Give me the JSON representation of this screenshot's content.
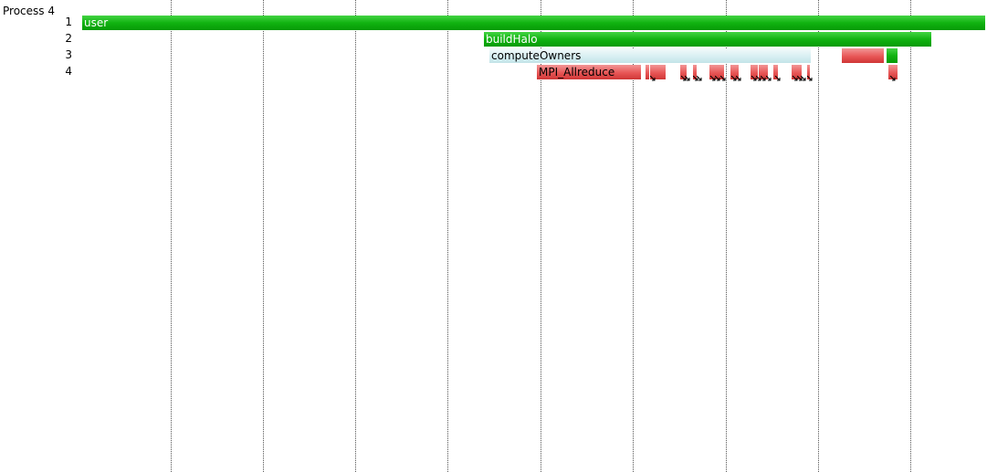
{
  "process": {
    "label": "Process 4"
  },
  "rows": [
    "1",
    "2",
    "3",
    "4"
  ],
  "regions": {
    "user": "user",
    "buildHalo": "buildHalo",
    "computeOwners": "computeOwners",
    "mpi_allreduce": "MPI_Allreduce"
  },
  "colors": {
    "user_region": "#11b311",
    "compute_region": "#d8eff2",
    "mpi_region": "#e85656",
    "background": "#ffffff"
  }
}
